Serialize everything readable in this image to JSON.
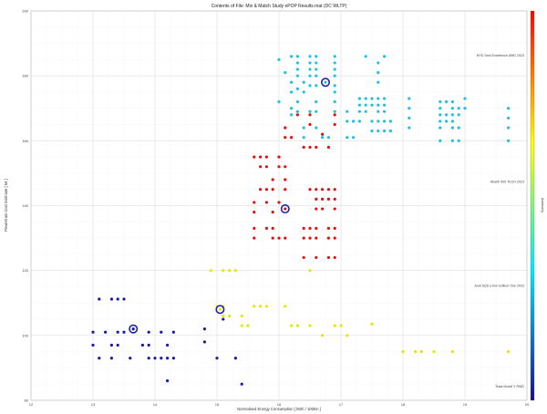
{
  "chart_data": {
    "type": "scatter",
    "title": "Contents of File: Mix & Match Study ePOP Results.mat (DC WLTP)",
    "xlabel": "Normalised Energy Consumption [ kWh / 100km ]",
    "ylabel": "Powertrain Cost Estimate [ k€ ]",
    "xlim": [
      12,
      20
    ],
    "ylim": [
      80,
      200
    ],
    "xticks": [
      "12",
      "13",
      "14",
      "15",
      "16",
      "17",
      "18",
      "19",
      "20"
    ],
    "yticks": [
      "80",
      "100",
      "120",
      "140",
      "160",
      "180",
      "200"
    ],
    "grid": true,
    "colorbar": {
      "label": "Autonomy",
      "range": [
        0,
        1
      ],
      "colors": [
        "#1a0a8c",
        "#00e5ff",
        "#ffff00",
        "#ff0000"
      ]
    },
    "series": [
      {
        "color": "#1a1aa0",
        "label": "Tesla Model Y RWD",
        "points": [
          [
            13.1,
            111.2
          ],
          [
            13.3,
            111.2
          ],
          [
            13.4,
            111.2
          ],
          [
            13.5,
            111.2
          ],
          [
            13.0,
            101.0
          ],
          [
            13.2,
            101.0
          ],
          [
            13.4,
            101.0
          ],
          [
            13.5,
            101.0
          ],
          [
            13.9,
            101.0
          ],
          [
            14.1,
            101.0
          ],
          [
            14.3,
            101.0
          ],
          [
            13.0,
            97.0
          ],
          [
            13.3,
            97.0
          ],
          [
            13.4,
            97.0
          ],
          [
            13.8,
            97.0
          ],
          [
            13.9,
            97.0
          ],
          [
            14.2,
            97.0
          ],
          [
            13.1,
            93.0
          ],
          [
            13.3,
            93.0
          ],
          [
            13.6,
            93.0
          ],
          [
            13.9,
            93.0
          ],
          [
            14.0,
            93.0
          ],
          [
            14.1,
            93.0
          ],
          [
            14.2,
            93.0
          ],
          [
            14.3,
            93.0
          ],
          [
            15.0,
            93.0
          ],
          [
            15.3,
            93.0
          ],
          [
            14.8,
            98.0
          ],
          [
            14.8,
            102.0
          ],
          [
            15.1,
            105.0
          ],
          [
            14.2,
            86.0
          ],
          [
            15.4,
            85.0
          ]
        ],
        "highlight": [
          13.65,
          102.0
        ]
      },
      {
        "color": "#e6e600",
        "label": "Audi SQ5 e-tron Edition One 2023",
        "points": [
          [
            14.9,
            120.0
          ],
          [
            15.1,
            120.0
          ],
          [
            15.2,
            120.0
          ],
          [
            15.3,
            120.0
          ],
          [
            15.0,
            109.0
          ],
          [
            15.1,
            109.0
          ],
          [
            15.6,
            109.0
          ],
          [
            15.7,
            109.0
          ],
          [
            15.8,
            109.0
          ],
          [
            16.1,
            109.0
          ],
          [
            15.1,
            106.0
          ],
          [
            15.2,
            106.0
          ],
          [
            15.4,
            106.0
          ],
          [
            15.4,
            103.0
          ],
          [
            15.5,
            103.0
          ],
          [
            16.2,
            103.0
          ],
          [
            16.3,
            103.0
          ],
          [
            16.5,
            103.0
          ],
          [
            16.9,
            103.0
          ],
          [
            17.0,
            103.0
          ],
          [
            17.1,
            100.0
          ],
          [
            16.7,
            100.0
          ],
          [
            16.5,
            120.0
          ],
          [
            17.5,
            103.5
          ],
          [
            18.0,
            95.0
          ],
          [
            18.2,
            95.0
          ],
          [
            18.3,
            95.0
          ],
          [
            18.5,
            95.0
          ],
          [
            18.8,
            95.0
          ],
          [
            19.7,
            95.0
          ]
        ],
        "highlight": [
          15.05,
          108.0
        ]
      },
      {
        "color": "#e01010",
        "label": "Abarth 500 TECH 2023",
        "points": [
          [
            15.6,
            155.0
          ],
          [
            15.7,
            155.0
          ],
          [
            15.8,
            155.0
          ],
          [
            16.0,
            155.0
          ],
          [
            15.8,
            152.0
          ],
          [
            15.7,
            152.0
          ],
          [
            16.0,
            152.0
          ],
          [
            16.1,
            152.0
          ],
          [
            15.9,
            148.0
          ],
          [
            16.1,
            148.0
          ],
          [
            15.7,
            145.0
          ],
          [
            15.8,
            145.0
          ],
          [
            15.9,
            145.0
          ],
          [
            16.1,
            145.0
          ],
          [
            15.6,
            141.0
          ],
          [
            15.8,
            141.0
          ],
          [
            16.0,
            141.0
          ],
          [
            15.6,
            138.0
          ],
          [
            15.9,
            138.0
          ],
          [
            15.8,
            133.0
          ],
          [
            15.9,
            133.0
          ],
          [
            15.6,
            133.0
          ],
          [
            15.6,
            130.0
          ],
          [
            15.9,
            130.0
          ],
          [
            16.0,
            130.0
          ],
          [
            16.1,
            130.0
          ],
          [
            16.5,
            145.0
          ],
          [
            16.6,
            145.0
          ],
          [
            16.7,
            145.0
          ],
          [
            16.8,
            145.0
          ],
          [
            16.9,
            145.0
          ],
          [
            16.6,
            142.0
          ],
          [
            16.7,
            142.0
          ],
          [
            16.8,
            142.0
          ],
          [
            16.9,
            142.0
          ],
          [
            16.6,
            139.0
          ],
          [
            16.7,
            139.0
          ],
          [
            16.9,
            139.0
          ],
          [
            16.4,
            133.0
          ],
          [
            16.5,
            133.0
          ],
          [
            16.6,
            133.0
          ],
          [
            16.8,
            133.0
          ],
          [
            16.9,
            133.0
          ],
          [
            16.4,
            130.0
          ],
          [
            16.5,
            130.0
          ],
          [
            16.6,
            130.0
          ],
          [
            16.8,
            130.0
          ],
          [
            16.9,
            130.0
          ],
          [
            16.4,
            124.0
          ],
          [
            16.6,
            124.0
          ],
          [
            16.8,
            124.0
          ],
          [
            16.9,
            124.0
          ],
          [
            16.3,
            168.0
          ],
          [
            16.5,
            168.0
          ],
          [
            16.9,
            168.0
          ],
          [
            16.5,
            165.0
          ],
          [
            16.9,
            165.0
          ],
          [
            16.7,
            162.0
          ],
          [
            16.5,
            158.0
          ],
          [
            16.6,
            158.0
          ],
          [
            16.8,
            158.0
          ],
          [
            16.2,
            161.0
          ],
          [
            16.1,
            161.0
          ],
          [
            16.4,
            158.0
          ],
          [
            16.1,
            164.0
          ]
        ],
        "highlight": [
          16.1,
          139.0
        ]
      },
      {
        "color": "#20c0e0",
        "label": "BYD Seal Excellence AWD 2023",
        "points": [
          [
            16.3,
            186.0
          ],
          [
            16.5,
            186.0
          ],
          [
            16.6,
            186.0
          ],
          [
            16.9,
            186.0
          ],
          [
            16.3,
            184.0
          ],
          [
            16.5,
            184.0
          ],
          [
            16.6,
            184.0
          ],
          [
            16.9,
            184.0
          ],
          [
            16.3,
            182.0
          ],
          [
            16.5,
            182.0
          ],
          [
            16.6,
            182.0
          ],
          [
            16.9,
            182.0
          ],
          [
            16.3,
            180.0
          ],
          [
            16.5,
            180.0
          ],
          [
            16.6,
            180.0
          ],
          [
            16.9,
            180.0
          ],
          [
            16.5,
            177.0
          ],
          [
            16.6,
            177.0
          ],
          [
            16.9,
            177.0
          ],
          [
            16.9,
            175.0
          ],
          [
            16.3,
            172.0
          ],
          [
            16.6,
            172.0
          ],
          [
            16.9,
            172.0
          ],
          [
            16.3,
            169.0
          ],
          [
            16.5,
            169.0
          ],
          [
            16.6,
            169.0
          ],
          [
            16.9,
            169.0
          ],
          [
            17.1,
            169.0
          ],
          [
            17.1,
            166.0
          ],
          [
            17.2,
            166.0
          ],
          [
            17.6,
            178.0
          ],
          [
            17.6,
            181.0
          ],
          [
            17.6,
            184.0
          ],
          [
            17.4,
            186.0
          ],
          [
            17.7,
            186.0
          ],
          [
            17.3,
            173.0
          ],
          [
            17.4,
            173.0
          ],
          [
            17.5,
            173.0
          ],
          [
            17.6,
            173.0
          ],
          [
            17.7,
            173.0
          ],
          [
            17.3,
            171.0
          ],
          [
            17.4,
            171.0
          ],
          [
            17.5,
            171.0
          ],
          [
            17.6,
            171.0
          ],
          [
            17.7,
            171.0
          ],
          [
            17.3,
            169.0
          ],
          [
            17.4,
            169.0
          ],
          [
            17.6,
            169.0
          ],
          [
            17.7,
            169.0
          ],
          [
            17.3,
            166.0
          ],
          [
            17.5,
            166.0
          ],
          [
            17.6,
            166.0
          ],
          [
            17.7,
            166.0
          ],
          [
            17.8,
            166.0
          ],
          [
            17.5,
            163.0
          ],
          [
            17.6,
            163.0
          ],
          [
            17.7,
            163.0
          ],
          [
            17.8,
            163.0
          ],
          [
            18.1,
            173.0
          ],
          [
            18.1,
            170.0
          ],
          [
            18.1,
            167.0
          ],
          [
            18.1,
            164.0
          ],
          [
            18.6,
            172.0
          ],
          [
            18.7,
            172.0
          ],
          [
            18.8,
            172.0
          ],
          [
            19.0,
            173.0
          ],
          [
            18.6,
            170.0
          ],
          [
            18.8,
            170.0
          ],
          [
            18.9,
            170.0
          ],
          [
            19.0,
            170.0
          ],
          [
            18.6,
            168.0
          ],
          [
            18.7,
            168.0
          ],
          [
            18.8,
            168.0
          ],
          [
            18.9,
            168.0
          ],
          [
            18.6,
            166.0
          ],
          [
            18.7,
            166.0
          ],
          [
            18.8,
            166.0
          ],
          [
            18.6,
            164.0
          ],
          [
            18.8,
            164.0
          ],
          [
            18.9,
            164.0
          ],
          [
            19.7,
            170.0
          ],
          [
            19.7,
            167.0
          ],
          [
            19.7,
            164.0
          ],
          [
            18.6,
            160.0
          ],
          [
            18.8,
            160.0
          ],
          [
            18.9,
            160.0
          ],
          [
            19.7,
            160.0
          ],
          [
            16.4,
            161.0
          ],
          [
            16.7,
            161.0
          ],
          [
            16.8,
            161.0
          ],
          [
            17.1,
            161.0
          ],
          [
            17.2,
            161.0
          ],
          [
            16.2,
            168.0
          ],
          [
            16.0,
            172.0
          ],
          [
            16.2,
            175.0
          ],
          [
            16.2,
            178.0
          ],
          [
            16.1,
            181.0
          ],
          [
            16.0,
            185.0
          ],
          [
            16.2,
            186.0
          ],
          [
            16.4,
            175.0
          ],
          [
            16.4,
            178.0
          ],
          [
            16.2,
            170.0
          ],
          [
            16.3,
            176.0
          ],
          [
            16.4,
            164.0
          ],
          [
            16.6,
            164.0
          ]
        ],
        "highlight": [
          16.75,
          178.0
        ]
      }
    ],
    "annotations": [
      {
        "text": "BYD Seal Excellence AWD 2023",
        "y": 186.0
      },
      {
        "text": "Abarth 500 TECH 2023",
        "y": 147.0
      },
      {
        "text": "Audi SQ5 e-tron Edition One 2023",
        "y": 115.0
      },
      {
        "text": "Tesla Model Y RWD",
        "y": 84.0
      }
    ]
  }
}
